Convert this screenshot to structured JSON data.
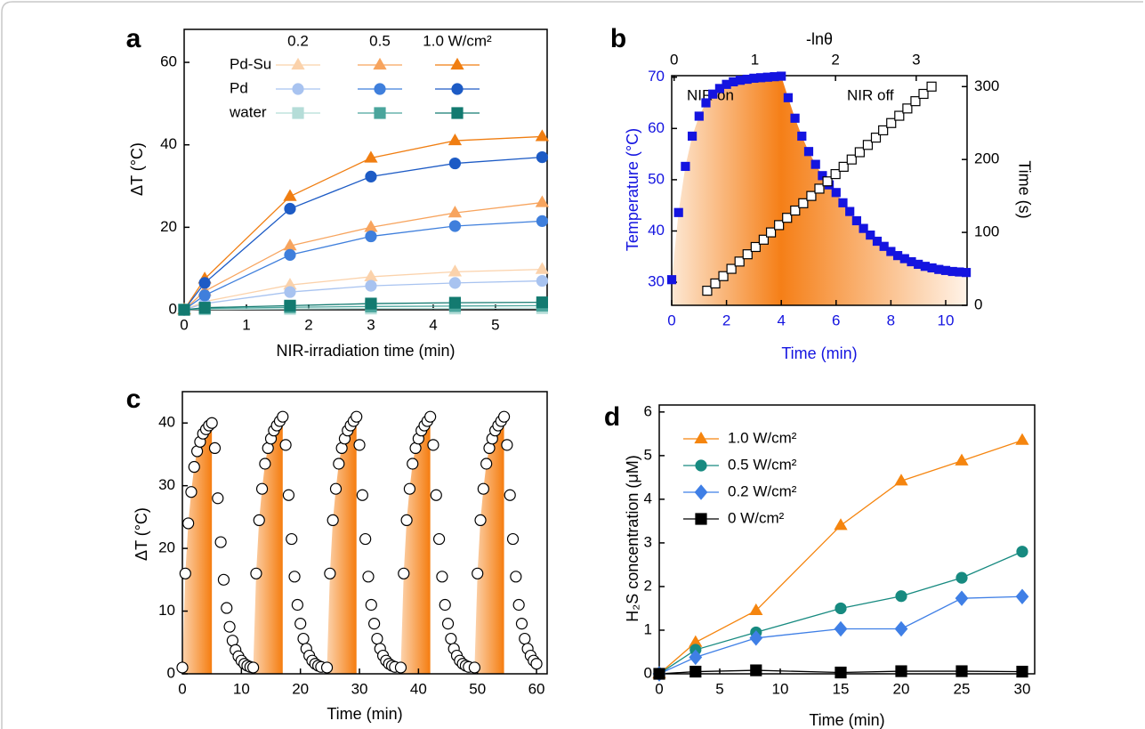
{
  "chart_data": [
    {
      "type": "line",
      "panel_label": "a",
      "xlabel": "NIR-irradiation time (min)",
      "ylabel": "ΔT (°C)",
      "xlim": [
        0,
        5.83
      ],
      "ylim": [
        0,
        68
      ],
      "xticks": [
        0,
        1,
        2,
        3,
        4,
        5
      ],
      "yticks": [
        0,
        20,
        40,
        60
      ],
      "intensities": [
        "0.2",
        "0.5",
        "1.0 W/cm²"
      ],
      "x": [
        0,
        0.33,
        1.7,
        3,
        4.35,
        5.75
      ],
      "groups": [
        {
          "name": "Pd-Su",
          "marker": "triangle",
          "series": [
            {
              "color": "#fbd2ab",
              "values": [
                0,
                2,
                6,
                8,
                9.2,
                9.8
              ]
            },
            {
              "color": "#f7a45e",
              "values": [
                0,
                4.5,
                15.5,
                20,
                23.5,
                26
              ]
            },
            {
              "color": "#f07e12",
              "values": [
                0,
                7.5,
                27.5,
                36.8,
                41,
                42
              ]
            }
          ]
        },
        {
          "name": "Pd",
          "marker": "circle",
          "series": [
            {
              "color": "#a8c3f0",
              "values": [
                0,
                1.5,
                4.3,
                5.8,
                6.5,
                7
              ]
            },
            {
              "color": "#3f7fdc",
              "values": [
                0,
                3.5,
                13.3,
                17.8,
                20.3,
                21.5
              ]
            },
            {
              "color": "#1d5bc5",
              "values": [
                0,
                6.5,
                24.5,
                32.3,
                35.5,
                37
              ]
            }
          ]
        },
        {
          "name": "water",
          "marker": "square",
          "series": [
            {
              "color": "#b5ddd8",
              "values": [
                0,
                0.1,
                0.2,
                0.3,
                0.3,
                0.4
              ]
            },
            {
              "color": "#4aa59c",
              "values": [
                0,
                0.3,
                0.6,
                0.8,
                0.9,
                1
              ]
            },
            {
              "color": "#137a70",
              "values": [
                0,
                0.5,
                1,
                1.5,
                1.7,
                1.8
              ]
            }
          ]
        }
      ]
    },
    {
      "type": "dual-axis",
      "panel_label": "b",
      "xlabel": "Time (min)",
      "ylabel": "Temperature (°C)",
      "x2label": "-lnθ",
      "y2label": "Time (s)",
      "axis_color": "#1414e0",
      "xlim": [
        0,
        10.78
      ],
      "ylim": [
        25.5,
        70.3
      ],
      "xticks": [
        0,
        2,
        4,
        6,
        8,
        10
      ],
      "yticks": [
        30,
        40,
        50,
        60,
        70
      ],
      "x2lim": [
        -0.03,
        3.63
      ],
      "x2ticks": [
        0,
        1,
        2,
        3
      ],
      "y2lim": [
        0,
        315
      ],
      "y2ticks": [
        0,
        100,
        200,
        300
      ],
      "annotations": [
        "NIR on",
        "NIR off"
      ],
      "series": [
        {
          "color": "#1414e0",
          "marker": "square",
          "x": [
            0,
            0.25,
            0.5,
            0.75,
            1,
            1.25,
            1.5,
            1.75,
            2,
            2.25,
            2.5,
            2.75,
            3,
            3.25,
            3.5,
            3.75,
            4,
            4.25,
            4.5,
            4.75,
            5,
            5.25,
            5.5,
            5.75,
            6,
            6.25,
            6.5,
            6.75,
            7,
            7.25,
            7.5,
            7.75,
            8,
            8.25,
            8.5,
            8.75,
            9,
            9.25,
            9.5,
            9.75,
            10,
            10.25,
            10.5,
            10.75
          ],
          "values": [
            30.5,
            43.6,
            52.6,
            58.5,
            62.4,
            65,
            66.7,
            67.8,
            68.6,
            69.1,
            69.4,
            69.6,
            69.8,
            69.9,
            70,
            70.1,
            70.2,
            66,
            62,
            58.5,
            55.5,
            53,
            50.8,
            49,
            47.5,
            45.5,
            43.8,
            42,
            40.5,
            39.2,
            38,
            37,
            36,
            35.2,
            34.6,
            34,
            33.5,
            33.1,
            32.8,
            32.5,
            32.3,
            32.1,
            32,
            31.9
          ]
        },
        {
          "color": "#000000",
          "marker": "open-square",
          "axis": "y2",
          "xaxis": "x2",
          "x": [
            0.41,
            0.51,
            0.61,
            0.71,
            0.81,
            0.91,
            1.01,
            1.11,
            1.2,
            1.3,
            1.4,
            1.5,
            1.6,
            1.7,
            1.8,
            1.9,
            2,
            2.1,
            2.2,
            2.3,
            2.4,
            2.5,
            2.59,
            2.69,
            2.79,
            2.89,
            2.99,
            3.09,
            3.19
          ],
          "values": [
            20,
            30,
            40,
            50,
            60,
            70,
            80,
            90,
            100,
            110,
            120,
            130,
            140,
            150,
            160,
            170,
            180,
            190,
            200,
            210,
            220,
            230,
            240,
            250,
            260,
            270,
            280,
            290,
            300
          ]
        }
      ],
      "fit": {
        "color": "#e0302a",
        "axis": "y2",
        "xaxis": "x2",
        "x": [
          0.41,
          3.19
        ],
        "values": [
          20,
          300
        ]
      }
    },
    {
      "type": "cycling",
      "panel_label": "c",
      "xlabel": "Time (min)",
      "ylabel": "ΔT (°C)",
      "xlim": [
        0,
        61.8
      ],
      "ylim": [
        0,
        45
      ],
      "xticks": [
        0,
        10,
        20,
        30,
        40,
        50,
        60
      ],
      "yticks": [
        0,
        10,
        20,
        30,
        40
      ],
      "x": [
        0,
        0.5,
        1,
        1.5,
        2,
        2.5,
        3,
        3.5,
        4,
        4.5,
        5,
        5.5,
        6,
        6.5,
        7,
        7.5,
        8,
        8.5,
        9,
        9.5,
        10,
        10.5,
        11,
        11.5,
        12,
        12.5,
        13,
        13.5,
        14,
        14.5,
        15,
        15.5,
        16,
        16.5,
        17,
        17.5,
        18,
        18.5,
        19,
        19.5,
        20,
        20.5,
        21,
        21.5,
        22,
        22.5,
        23,
        23.5,
        24.5,
        25,
        25.5,
        26,
        26.5,
        27,
        27.5,
        28,
        28.5,
        29,
        29.5,
        30,
        30.5,
        31,
        31.5,
        32,
        32.5,
        33,
        33.5,
        34,
        34.5,
        35,
        35.5,
        36,
        37,
        37.5,
        38,
        38.5,
        39,
        39.5,
        40,
        40.5,
        41,
        41.5,
        42,
        42.5,
        43,
        43.5,
        44,
        44.5,
        45,
        45.5,
        46,
        46.5,
        47,
        47.5,
        48,
        48.5,
        49.5,
        50,
        50.5,
        51,
        51.5,
        52,
        52.5,
        53,
        53.5,
        54,
        54.5,
        55,
        55.5,
        56,
        56.5,
        57,
        57.5,
        58,
        58.5,
        59,
        59.5,
        60
      ],
      "values": [
        1,
        16,
        24,
        29,
        33,
        35.5,
        37,
        38.3,
        39,
        39.6,
        40,
        36,
        28,
        21,
        15,
        10.5,
        7.5,
        5.3,
        3.8,
        2.8,
        2.1,
        1.6,
        1.3,
        1.1,
        1,
        16,
        24.5,
        29.5,
        33.5,
        36,
        37.5,
        38.8,
        39.6,
        40.3,
        41,
        36.5,
        28.5,
        21.5,
        15.5,
        11,
        8,
        5.6,
        4,
        2.9,
        2.1,
        1.6,
        1.3,
        1.1,
        1,
        16,
        24.5,
        29.5,
        33.5,
        36,
        37.5,
        38.8,
        39.6,
        40.3,
        41,
        36.5,
        28.5,
        21.5,
        15.5,
        11,
        8,
        5.6,
        4,
        2.9,
        2.1,
        1.6,
        1.3,
        1.1,
        1,
        16,
        24.5,
        29.5,
        33.5,
        36,
        37.5,
        38.8,
        39.6,
        40.3,
        41,
        36.5,
        28.5,
        21.5,
        15.5,
        11,
        8,
        5.6,
        4,
        2.9,
        2.1,
        1.6,
        1.3,
        1.1,
        1,
        16,
        24.5,
        29.5,
        33.5,
        36,
        37.5,
        38.8,
        39.6,
        40.3,
        41,
        36.5,
        28.5,
        21.5,
        15.5,
        11,
        8,
        5.6,
        4,
        2.9,
        2.1,
        1.6
      ]
    },
    {
      "type": "line",
      "panel_label": "d",
      "xlabel": "Time (min)",
      "ylabel": "H₂S concentration (μM)",
      "xlim": [
        0,
        31.03
      ],
      "ylim": [
        0,
        6.16
      ],
      "xticks": [
        0,
        5,
        10,
        15,
        20,
        25,
        30
      ],
      "yticks": [
        0,
        1,
        2,
        3,
        4,
        5,
        6
      ],
      "x": [
        0,
        3,
        8,
        15,
        20,
        25,
        30
      ],
      "series": [
        {
          "name": "1.0 W/cm²",
          "color": "#f5850f",
          "marker": "triangle",
          "values": [
            0,
            0.72,
            1.45,
            3.4,
            4.42,
            4.88,
            5.35
          ]
        },
        {
          "name": "0.5 W/cm²",
          "color": "#178a80",
          "marker": "circle",
          "values": [
            0,
            0.55,
            0.95,
            1.5,
            1.78,
            2.2,
            2.8
          ]
        },
        {
          "name": "0.2 W/cm²",
          "color": "#3f7fe6",
          "marker": "diamond",
          "values": [
            0,
            0.38,
            0.82,
            1.03,
            1.03,
            1.73,
            1.77
          ]
        },
        {
          "name": "0 W/cm²",
          "color": "#000000",
          "marker": "square",
          "values": [
            0,
            0.05,
            0.08,
            0.03,
            0.06,
            0.06,
            0.05
          ]
        }
      ]
    }
  ]
}
